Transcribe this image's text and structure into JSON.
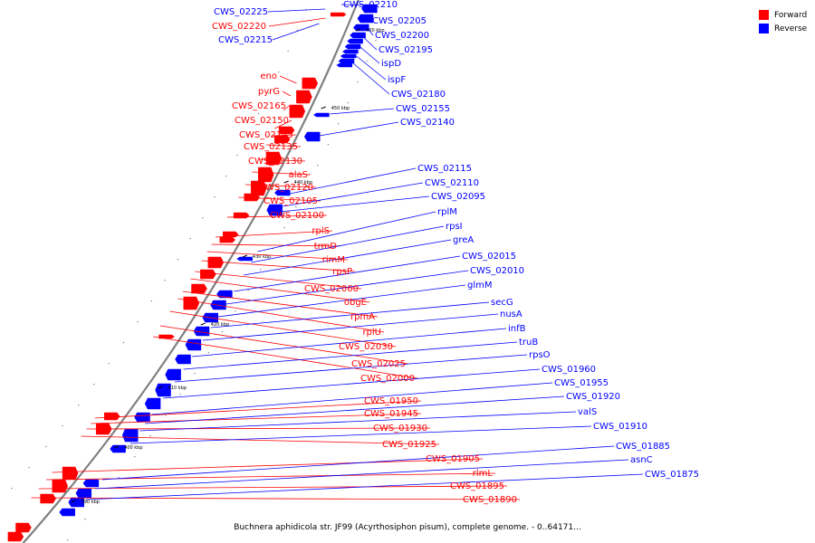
{
  "caption": "Buchnera aphidicola str. JF99 (Acyrthosiphon pisum), complete genome. - 0..64171...",
  "legend": {
    "items": [
      {
        "label": "Forward",
        "color": "#ff0000"
      },
      {
        "label": "Reverse",
        "color": "#0000ff"
      }
    ]
  },
  "colors": {
    "forward": "#ff0000",
    "reverse": "#0000ff",
    "backbone": "#808080"
  },
  "ticks": [
    "460 kbp",
    "450 kbp",
    "440 kbp",
    "430 kbp",
    "420 kbp",
    "410 kbp",
    "400 kbp",
    "390 kbp"
  ],
  "forward_labels": [
    "CWS_02220",
    "eno",
    "pyrG",
    "CWS_02165",
    "CWS_02150",
    "CWS_02145",
    "CWS_02135",
    "CWS_02130",
    "alaS",
    "CWS_02120",
    "CWS_02105",
    "CWS_02100",
    "rplS",
    "trmD",
    "rimM",
    "rpsP",
    "CWS_02060",
    "obgE",
    "rpmA",
    "rplU",
    "CWS_02030",
    "CWS_02025",
    "CWS_02000",
    "CWS_01950",
    "CWS_01945",
    "CWS_01930",
    "CWS_01925",
    "CWS_01905",
    "rlmL",
    "CWS_01895",
    "CWS_01890"
  ],
  "reverse_labels": [
    "CWS_02225",
    "CWS_02215",
    "CWS_02210",
    "CWS_02205",
    "CWS_02200",
    "CWS_02195",
    "ispD",
    "ispF",
    "CWS_02180",
    "CWS_02155",
    "CWS_02140",
    "CWS_02115",
    "CWS_02110",
    "CWS_02095",
    "rplM",
    "rpsI",
    "greA",
    "CWS_02015",
    "CWS_02010",
    "glmM",
    "secG",
    "nusA",
    "infB",
    "truB",
    "rpsO",
    "CWS_01960",
    "CWS_01955",
    "CWS_01920",
    "valS",
    "CWS_01910",
    "CWS_01885",
    "asnC",
    "CWS_01875"
  ]
}
